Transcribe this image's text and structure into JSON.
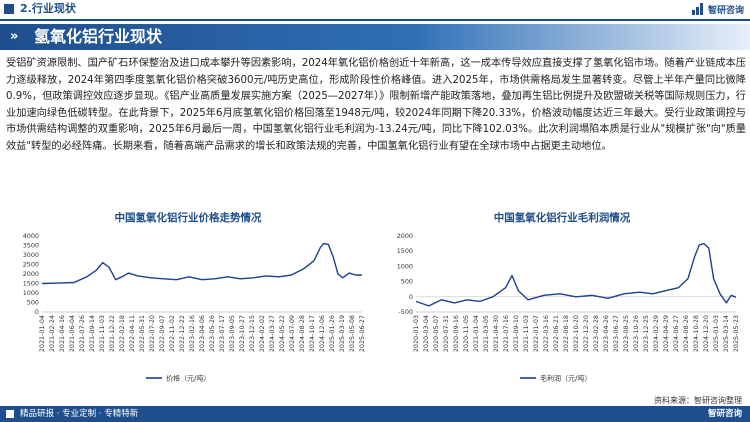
{
  "header": {
    "section": "2.行业现状",
    "brand": "智研咨询"
  },
  "title": "氢氧化铝行业现状",
  "paragraph": "受铝矿资源限制、国产矿石环保整治及进口成本攀升等因素影响，2024年氧化铝价格创近十年新高，这一成本传导效应直接支撑了氢氧化铝市场。随着产业链成本压力逐级释放，2024年第四季度氢氧化铝价格突破3600元/吨历史高位，形成阶段性价格峰值。进入2025年，市场供需格局发生显著转变。尽管上半年产量同比微降0.9%，但政策调控效应逐步显现。《铝产业高质量发展实施方案（2025—2027年）》限制新增产能政策落地，叠加再生铝比例提升及欧盟碳关税等国际规则压力，行业加速向绿色低碳转型。在此背景下，2025年6月底氢氧化铝价格回落至1948元/吨，较2024年同期下降20.33%，价格波动幅度达近三年最大。受行业政策调控与市场供需结构调整的双重影响，2025年6月最后一周，中国氢氧化铝行业毛利润为-13.24元/吨，同比下降102.03%。此次利润塌陷本质是行业从\"规模扩张\"向\"质量效益\"转型的必经阵痛。长期来看，随着高端产品需求的增长和政策法规的完善，中国氢氧化铝行业有望在全球市场中占据更主动地位。",
  "source": "资料来源：智研咨询整理",
  "footer": {
    "slogan": "精品研报 · 专业定制 · 专精特新",
    "brand": "智研咨询"
  },
  "colors": {
    "primary": "#1f4e8c",
    "series": "#1f3f8f"
  },
  "chart_data": [
    {
      "type": "line",
      "title": "中国氢氧化铝行业价格走势情况",
      "ylim": [
        0,
        4000
      ],
      "yticks": [
        0,
        500,
        1000,
        1500,
        2000,
        2500,
        3000,
        3500,
        4000
      ],
      "xticks": [
        "2021-01-04",
        "2021-02-24",
        "2021-04-16",
        "2021-06-04",
        "2021-07-26",
        "2021-09-14",
        "2021-11-03",
        "2021-12-22",
        "2022-02-18",
        "2022-04-11",
        "2022-05-31",
        "2022-07-20",
        "2022-09-07",
        "2022-11-02",
        "2022-12-22",
        "2023-02-16",
        "2023-04-06",
        "2023-05-26",
        "2023-07-17",
        "2023-09-05",
        "2023-10-27",
        "2023-12-15",
        "2024-02-02",
        "2024-03-27",
        "2024-05-22",
        "2024-07-09",
        "2024-08-28",
        "2024-10-17",
        "2024-12-06",
        "2025-01-26",
        "2025-03-19",
        "2025-05-08",
        "2025-06-27"
      ],
      "legend": "价格（元/吨）",
      "series": [
        {
          "name": "价格（元/吨）",
          "x": [
            0,
            0.05,
            0.1,
            0.14,
            0.17,
            0.19,
            0.21,
            0.23,
            0.25,
            0.27,
            0.3,
            0.34,
            0.38,
            0.42,
            0.46,
            0.5,
            0.54,
            0.58,
            0.62,
            0.66,
            0.7,
            0.74,
            0.78,
            0.82,
            0.85,
            0.87,
            0.88,
            0.895,
            0.91,
            0.925,
            0.94,
            0.96,
            0.98,
            1.0
          ],
          "values": [
            1500,
            1520,
            1550,
            1850,
            2200,
            2600,
            2350,
            1700,
            1850,
            2050,
            1900,
            1800,
            1750,
            1700,
            1850,
            1700,
            1750,
            1850,
            1750,
            1800,
            1900,
            1850,
            1950,
            2300,
            2700,
            3400,
            3600,
            3550,
            2900,
            2000,
            1800,
            2050,
            1950,
            1948
          ]
        }
      ]
    },
    {
      "type": "line",
      "title": "中国氢氧化铝行业毛利润情况",
      "ylim": [
        -500,
        2000
      ],
      "yticks": [
        -500,
        0,
        500,
        1000,
        1500,
        2000
      ],
      "xticks": [
        "2020-01-03",
        "2020-03-04",
        "2020-05-07",
        "2020-07-31",
        "2020-09-16",
        "2020-11-05",
        "2021-01-04",
        "2021-03-05",
        "2021-04-30",
        "2021-07-16",
        "2021-09-10",
        "2021-11-03",
        "2022-01-07",
        "2022-03-16",
        "2022-06-21",
        "2022-08-18",
        "2022-10-20",
        "2022-12-20",
        "2023-02-28",
        "2023-04-26",
        "2023-06-27",
        "2023-08-25",
        "2023-10-26",
        "2023-12-25",
        "2024-02-29",
        "2024-04-29",
        "2024-06-27",
        "2024-08-26",
        "2024-10-28",
        "2024-12-20",
        "2025-01-03",
        "2025-03-14",
        "2025-05-23"
      ],
      "legend": "毛利润（元/吨）",
      "series": [
        {
          "name": "毛利润（元/吨）",
          "x": [
            0,
            0.04,
            0.08,
            0.12,
            0.16,
            0.2,
            0.24,
            0.28,
            0.3,
            0.32,
            0.35,
            0.4,
            0.45,
            0.5,
            0.55,
            0.6,
            0.65,
            0.7,
            0.74,
            0.78,
            0.82,
            0.85,
            0.87,
            0.885,
            0.9,
            0.915,
            0.93,
            0.95,
            0.97,
            0.985,
            1.0
          ],
          "values": [
            -150,
            -300,
            -100,
            -200,
            -100,
            -150,
            0,
            300,
            700,
            200,
            -100,
            50,
            100,
            0,
            50,
            -50,
            100,
            150,
            100,
            200,
            300,
            600,
            1300,
            1700,
            1750,
            1600,
            600,
            100,
            -200,
            50,
            -13.24
          ]
        }
      ]
    }
  ]
}
